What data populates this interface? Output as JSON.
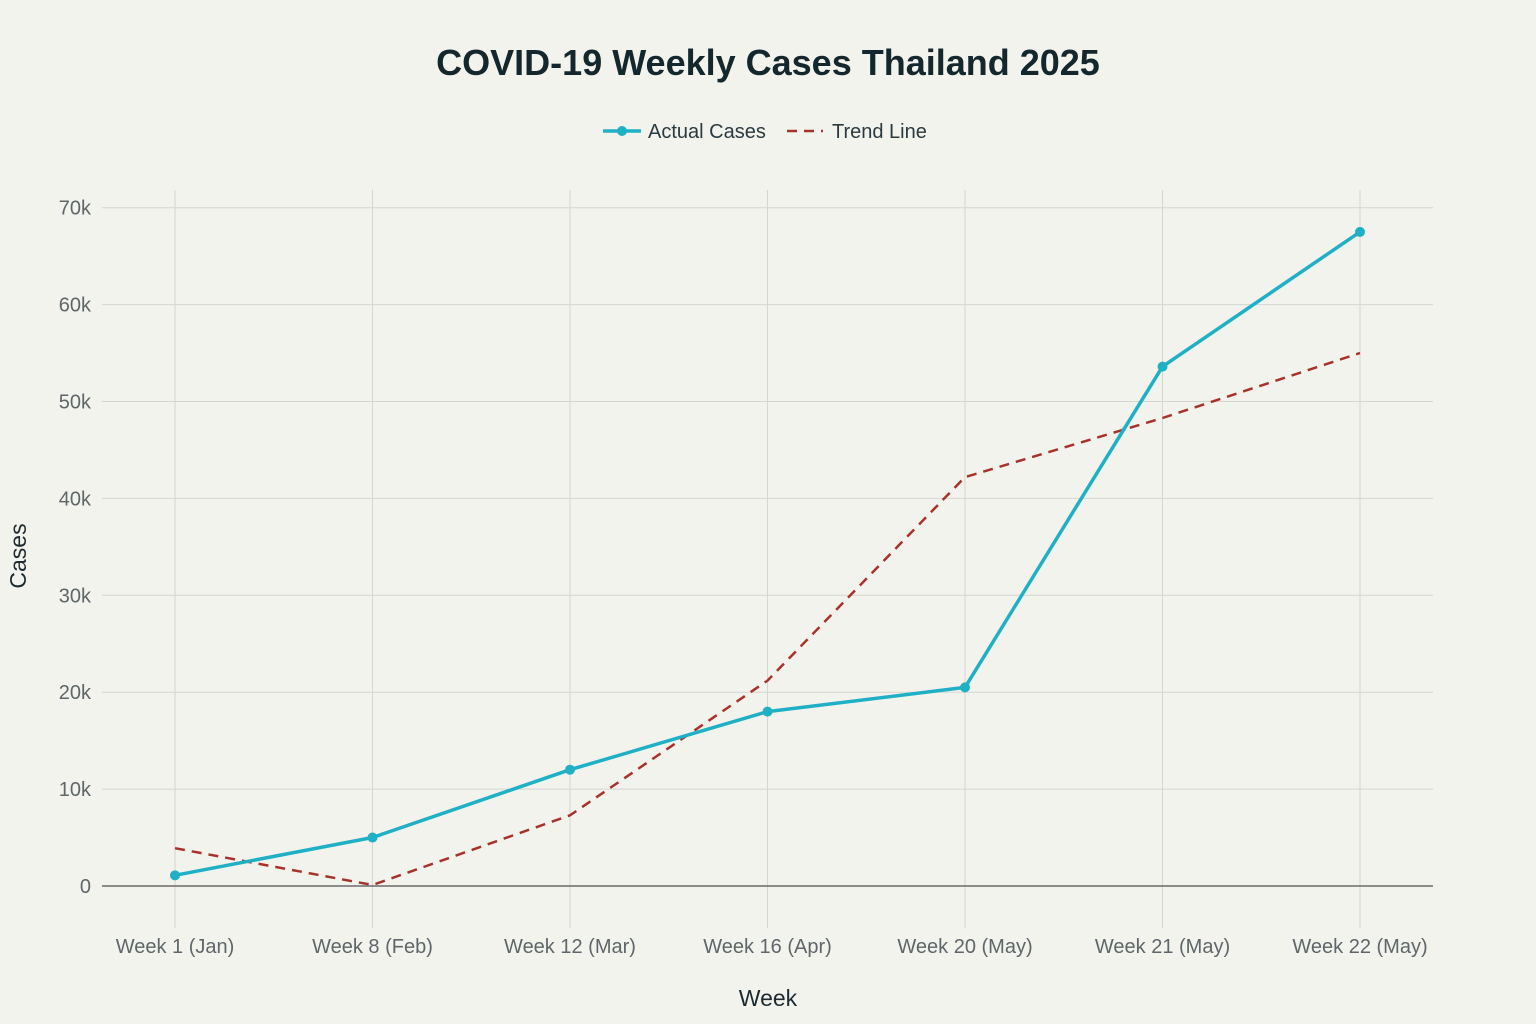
{
  "chart_data": {
    "type": "line",
    "title": "COVID-19 Weekly Cases Thailand 2025",
    "xlabel": "Week",
    "ylabel": "Cases",
    "categories": [
      "Week 1 (Jan)",
      "Week 8 (Feb)",
      "Week 12 (Mar)",
      "Week 16 (Apr)",
      "Week 20 (May)",
      "Week 21 (May)",
      "Week 22 (May)"
    ],
    "ylim": [
      -5000,
      72000
    ],
    "yticks": [
      0,
      10000,
      20000,
      30000,
      40000,
      50000,
      60000,
      70000
    ],
    "ytick_labels": [
      "0",
      "10k",
      "20k",
      "30k",
      "40k",
      "50k",
      "60k",
      "70k"
    ],
    "grid": true,
    "legend_position": "top-center",
    "series": [
      {
        "name": "Actual Cases",
        "style": "solid-markers",
        "color": "#1fb0c6",
        "values": [
          1100,
          5000,
          12000,
          18000,
          20500,
          53600,
          67500
        ]
      },
      {
        "name": "Trend Line",
        "style": "dashed",
        "color": "#a8322b",
        "values": [
          3900,
          100,
          7300,
          21200,
          42200,
          48300,
          55000
        ]
      }
    ]
  }
}
